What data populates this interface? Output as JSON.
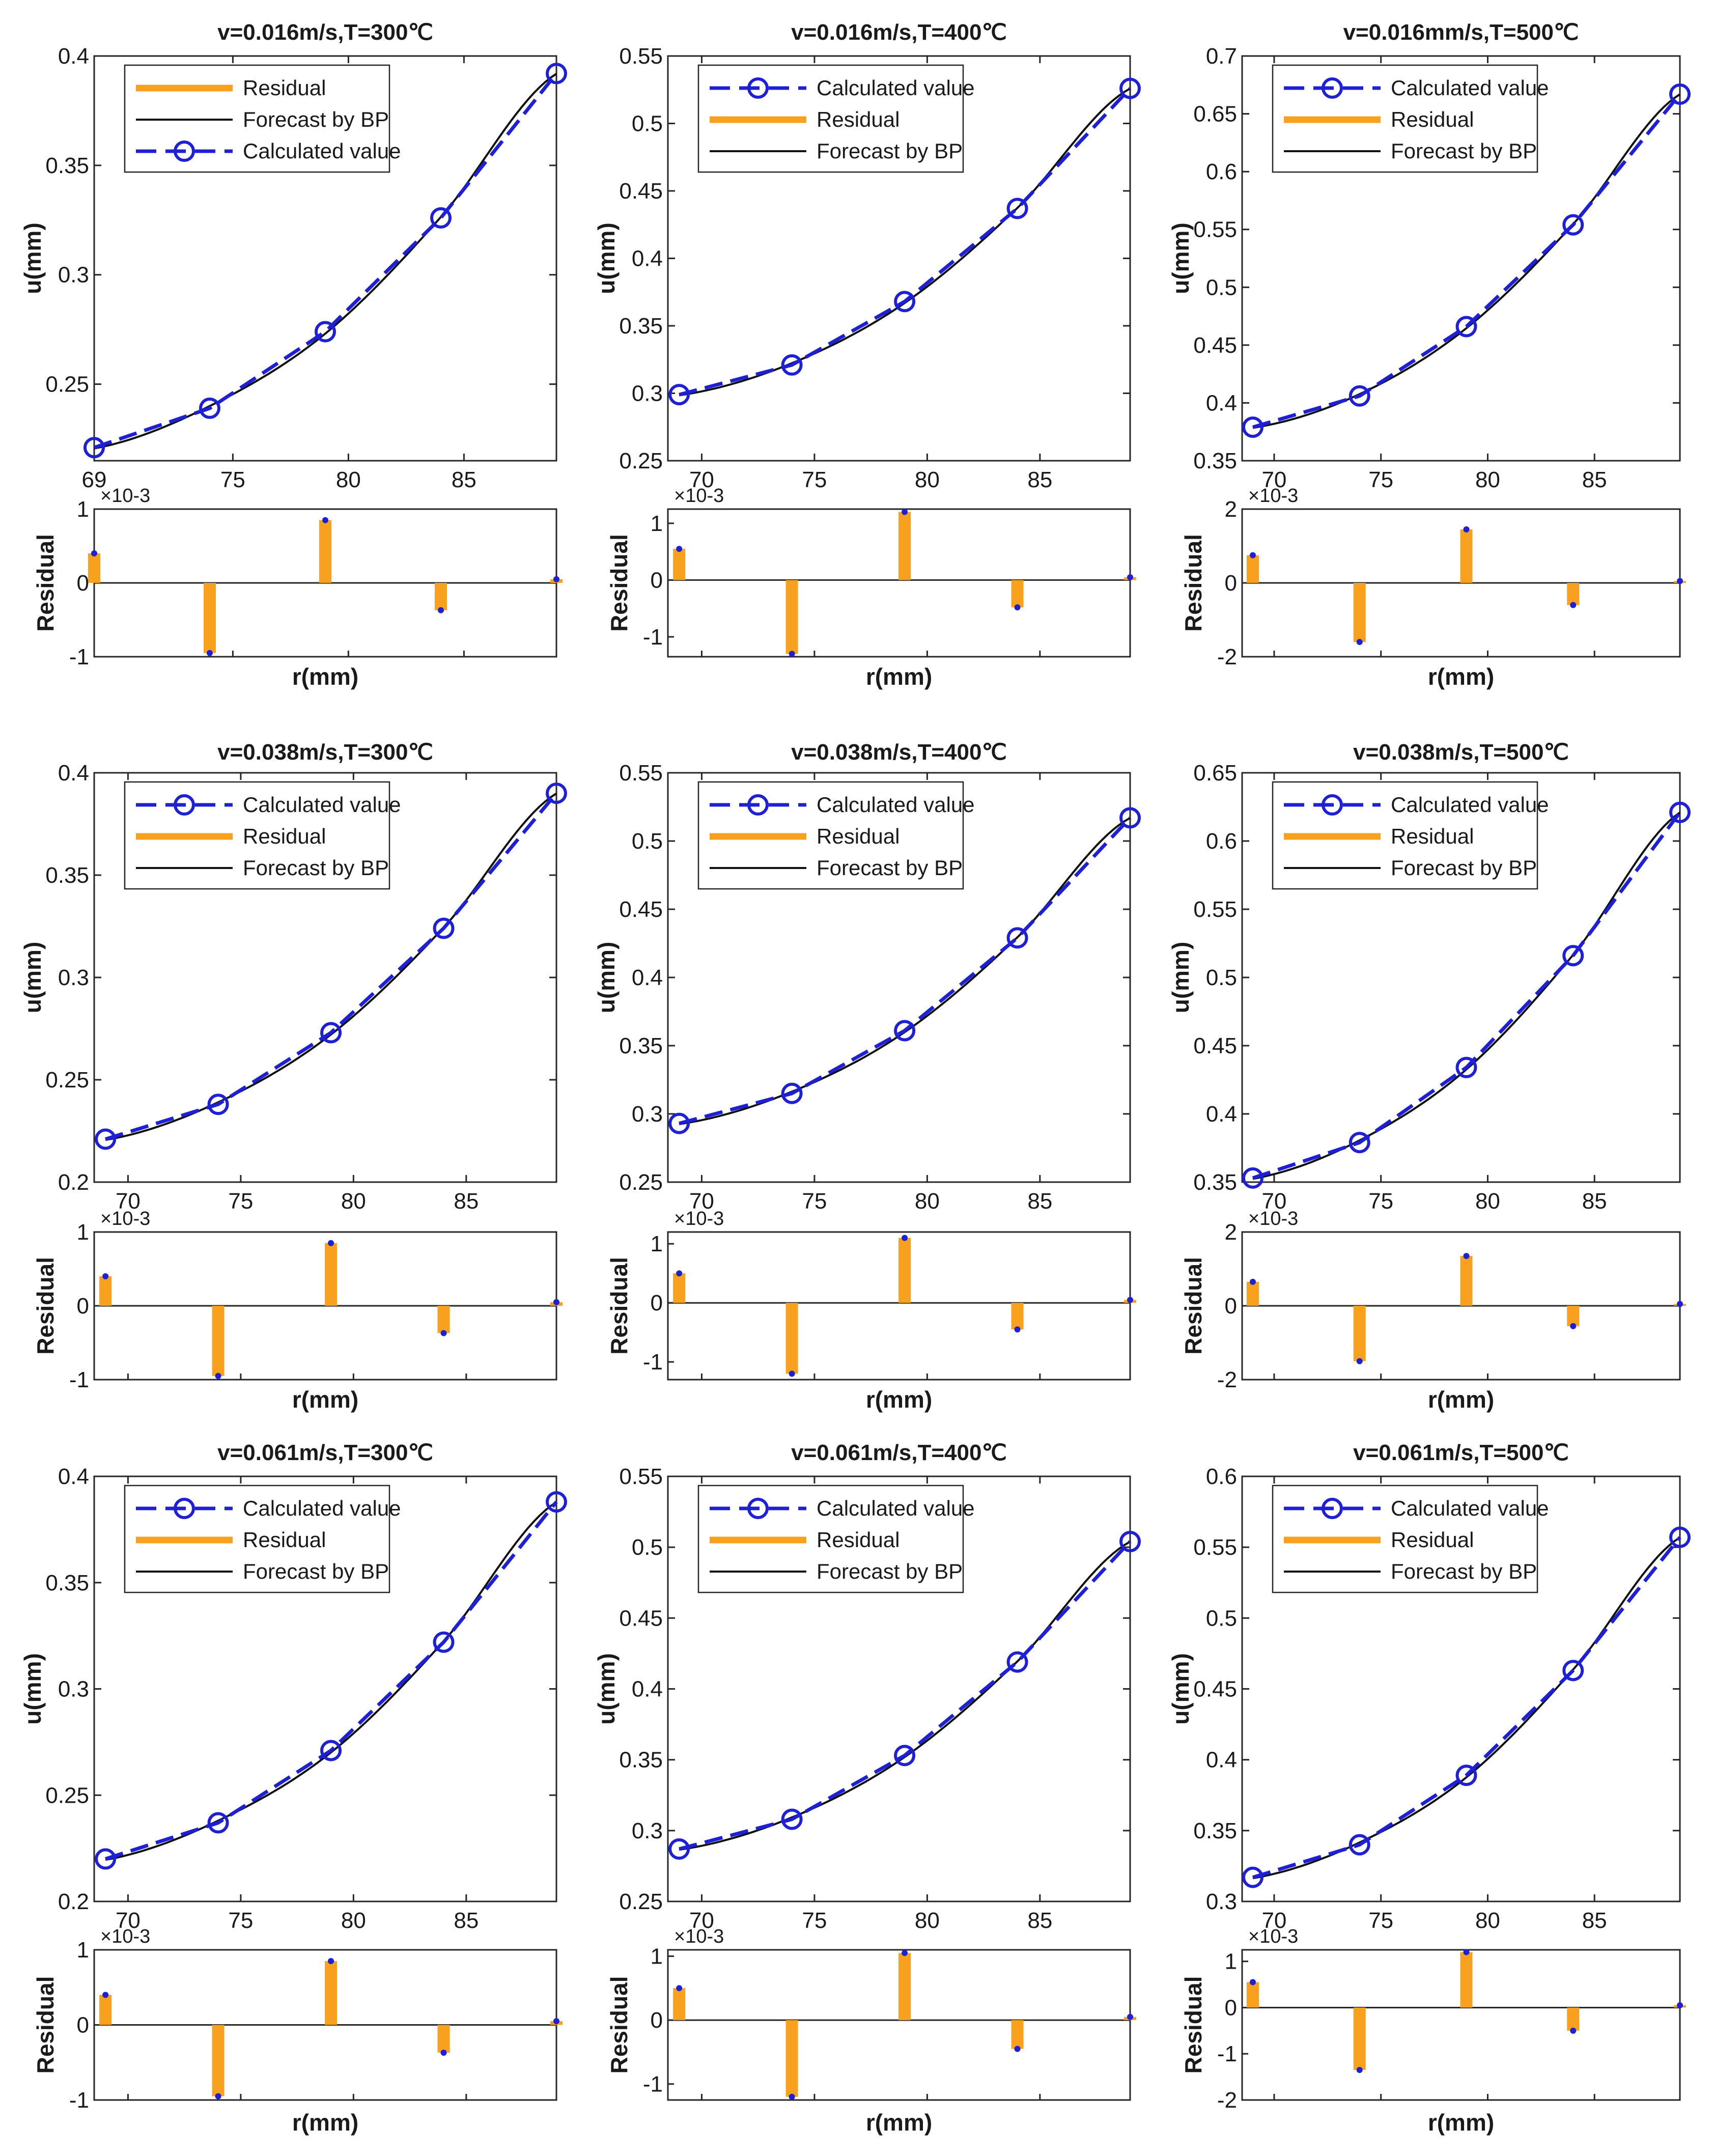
{
  "figure": {
    "series_labels": {
      "calculated": "Calculated value",
      "residual": "Residual",
      "forecast": "Forecast by BP"
    },
    "residual_ylabel": "Residual",
    "colors": {
      "calculated": "#1e20d6",
      "residual": "#f7a11e",
      "forecast": "#111111",
      "axis": "#262626"
    }
  },
  "chart_data": [
    {
      "type": "line",
      "title": "v=0.016m/s,T=300℃",
      "xlabel": "r(mm)",
      "ylabel": "u(mm)",
      "x": [
        69,
        74,
        79,
        84,
        89
      ],
      "calculated": [
        0.221,
        0.239,
        0.274,
        0.326,
        0.392
      ],
      "forecast": [
        0.2206,
        0.24,
        0.2731,
        0.3264,
        0.3919
      ],
      "ylim": [
        0.215,
        0.4
      ],
      "yticks": [
        "0.25",
        "0.3",
        "0.35",
        "0.4"
      ],
      "yticks_v": [
        0.25,
        0.3,
        0.35,
        0.4
      ],
      "xlim": [
        69,
        89
      ],
      "xticks": [
        "69",
        "75",
        "80",
        "85"
      ],
      "xticks_v": [
        69,
        75,
        80,
        85
      ],
      "legend_order": [
        "residual",
        "forecast",
        "calculated"
      ],
      "residual": {
        "values": [
          0.4,
          -0.95,
          0.85,
          -0.37,
          0.05
        ],
        "ylim": [
          -1,
          1
        ],
        "yticks": [
          "1",
          "0",
          "-1"
        ],
        "yticks_v": [
          1,
          0,
          -1
        ],
        "exponent": "×10-3"
      }
    },
    {
      "type": "line",
      "title": "v=0.016m/s,T=400℃",
      "xlabel": "r(mm)",
      "ylabel": "u(mm)",
      "x": [
        69,
        74,
        79,
        84,
        89
      ],
      "calculated": [
        0.299,
        0.321,
        0.368,
        0.437,
        0.526
      ],
      "forecast": [
        0.2985,
        0.3223,
        0.3669,
        0.4374,
        0.5259
      ],
      "ylim": [
        0.25,
        0.55
      ],
      "yticks": [
        "0.25",
        "0.3",
        "0.35",
        "0.4",
        "0.45",
        "0.5",
        "0.55"
      ],
      "yticks_v": [
        0.25,
        0.3,
        0.35,
        0.4,
        0.45,
        0.5,
        0.55
      ],
      "xlim": [
        68.5,
        89
      ],
      "xticks": [
        "70",
        "75",
        "80",
        "85"
      ],
      "xticks_v": [
        70,
        75,
        80,
        85
      ],
      "legend_order": [
        "calculated",
        "residual",
        "forecast"
      ],
      "residual": {
        "values": [
          0.55,
          -1.3,
          1.2,
          -0.48,
          0.05
        ],
        "ylim": [
          -1.35,
          1.25
        ],
        "yticks": [
          "1",
          "0",
          "-1"
        ],
        "yticks_v": [
          1,
          0,
          -1
        ],
        "exponent": "×10-3"
      }
    },
    {
      "type": "line",
      "title": "v=0.016mm/s,T=500℃",
      "xlabel": "r(mm)",
      "ylabel": "u(mm)",
      "x": [
        69,
        74,
        79,
        84,
        89
      ],
      "calculated": [
        0.379,
        0.406,
        0.466,
        0.554,
        0.667
      ],
      "forecast": [
        0.3784,
        0.4076,
        0.4646,
        0.5546,
        0.6669
      ],
      "ylim": [
        0.35,
        0.7
      ],
      "yticks": [
        "0.35",
        "0.4",
        "0.45",
        "0.5",
        "0.55",
        "0.6",
        "0.65",
        "0.7"
      ],
      "yticks_v": [
        0.35,
        0.4,
        0.45,
        0.5,
        0.55,
        0.6,
        0.65,
        0.7
      ],
      "xlim": [
        68.5,
        89
      ],
      "xticks": [
        "70",
        "75",
        "80",
        "85"
      ],
      "xticks_v": [
        70,
        75,
        80,
        85
      ],
      "legend_order": [
        "calculated",
        "residual",
        "forecast"
      ],
      "residual": {
        "values": [
          0.75,
          -1.6,
          1.45,
          -0.6,
          0.05
        ],
        "ylim": [
          -2,
          2
        ],
        "yticks": [
          "2",
          "0",
          "-2"
        ],
        "yticks_v": [
          2,
          0,
          -2
        ],
        "exponent": "×10-3"
      }
    },
    {
      "type": "line",
      "title": "v=0.038m/s,T=300℃",
      "xlabel": "r(mm)",
      "ylabel": "u(mm)",
      "x": [
        69,
        74,
        79,
        84,
        89
      ],
      "calculated": [
        0.221,
        0.238,
        0.273,
        0.324,
        0.39
      ],
      "forecast": [
        0.2206,
        0.239,
        0.2721,
        0.3244,
        0.3899
      ],
      "ylim": [
        0.2,
        0.4
      ],
      "yticks": [
        "0.2",
        "0.25",
        "0.3",
        "0.35",
        "0.4"
      ],
      "yticks_v": [
        0.2,
        0.25,
        0.3,
        0.35,
        0.4
      ],
      "xlim": [
        68.5,
        89
      ],
      "xticks": [
        "70",
        "75",
        "80",
        "85"
      ],
      "xticks_v": [
        70,
        75,
        80,
        85
      ],
      "legend_order": [
        "calculated",
        "residual",
        "forecast"
      ],
      "residual": {
        "values": [
          0.4,
          -0.95,
          0.85,
          -0.37,
          0.05
        ],
        "ylim": [
          -1,
          1
        ],
        "yticks": [
          "1",
          "0",
          "-1"
        ],
        "yticks_v": [
          1,
          0,
          -1
        ],
        "exponent": "×10-3"
      }
    },
    {
      "type": "line",
      "title": "v=0.038m/s,T=400℃",
      "xlabel": "r(mm)",
      "ylabel": "u(mm)",
      "x": [
        69,
        74,
        79,
        84,
        89
      ],
      "calculated": [
        0.293,
        0.315,
        0.361,
        0.429,
        0.517
      ],
      "forecast": [
        0.2925,
        0.3163,
        0.3599,
        0.4294,
        0.5169
      ],
      "ylim": [
        0.25,
        0.55
      ],
      "yticks": [
        "0.25",
        "0.3",
        "0.35",
        "0.4",
        "0.45",
        "0.5",
        "0.55"
      ],
      "yticks_v": [
        0.25,
        0.3,
        0.35,
        0.4,
        0.45,
        0.5,
        0.55
      ],
      "xlim": [
        68.5,
        89
      ],
      "xticks": [
        "70",
        "75",
        "80",
        "85"
      ],
      "xticks_v": [
        70,
        75,
        80,
        85
      ],
      "legend_order": [
        "calculated",
        "residual",
        "forecast"
      ],
      "residual": {
        "values": [
          0.5,
          -1.2,
          1.1,
          -0.45,
          0.05
        ],
        "ylim": [
          -1.3,
          1.2
        ],
        "yticks": [
          "1",
          "0",
          "-1"
        ],
        "yticks_v": [
          1,
          0,
          -1
        ],
        "exponent": "×10-3"
      }
    },
    {
      "type": "line",
      "title": "v=0.038m/s,T=500℃",
      "xlabel": "r(mm)",
      "ylabel": "u(mm)",
      "x": [
        69,
        74,
        79,
        84,
        89
      ],
      "calculated": [
        0.353,
        0.379,
        0.434,
        0.516,
        0.621
      ],
      "forecast": [
        0.3524,
        0.3806,
        0.4326,
        0.5166,
        0.6209
      ],
      "ylim": [
        0.35,
        0.65
      ],
      "yticks": [
        "0.35",
        "0.4",
        "0.45",
        "0.5",
        "0.55",
        "0.6",
        "0.65"
      ],
      "yticks_v": [
        0.35,
        0.4,
        0.45,
        0.5,
        0.55,
        0.6,
        0.65
      ],
      "xlim": [
        68.5,
        89
      ],
      "xticks": [
        "70",
        "75",
        "80",
        "85"
      ],
      "xticks_v": [
        70,
        75,
        80,
        85
      ],
      "legend_order": [
        "calculated",
        "residual",
        "forecast"
      ],
      "residual": {
        "values": [
          0.65,
          -1.5,
          1.35,
          -0.55,
          0.05
        ],
        "ylim": [
          -2,
          2
        ],
        "yticks": [
          "2",
          "0",
          "-2"
        ],
        "yticks_v": [
          2,
          0,
          -2
        ],
        "exponent": "×10-3"
      }
    },
    {
      "type": "line",
      "title": "v=0.061m/s,T=300℃",
      "xlabel": "r(mm)",
      "ylabel": "u(mm)",
      "x": [
        69,
        74,
        79,
        84,
        89
      ],
      "calculated": [
        0.22,
        0.237,
        0.271,
        0.322,
        0.388
      ],
      "forecast": [
        0.2196,
        0.238,
        0.2701,
        0.3224,
        0.3879
      ],
      "ylim": [
        0.2,
        0.4
      ],
      "yticks": [
        "0.2",
        "0.25",
        "0.3",
        "0.35",
        "0.4"
      ],
      "yticks_v": [
        0.2,
        0.25,
        0.3,
        0.35,
        0.4
      ],
      "xlim": [
        68.5,
        89
      ],
      "xticks": [
        "70",
        "75",
        "80",
        "85"
      ],
      "xticks_v": [
        70,
        75,
        80,
        85
      ],
      "legend_order": [
        "calculated",
        "residual",
        "forecast"
      ],
      "residual": {
        "values": [
          0.4,
          -0.95,
          0.85,
          -0.37,
          0.05
        ],
        "ylim": [
          -1,
          1
        ],
        "yticks": [
          "1",
          "0",
          "-1"
        ],
        "yticks_v": [
          1,
          0,
          -1
        ],
        "exponent": "×10-3"
      }
    },
    {
      "type": "line",
      "title": "v=0.061m/s,T=400℃",
      "xlabel": "r(mm)",
      "ylabel": "u(mm)",
      "x": [
        69,
        74,
        79,
        84,
        89
      ],
      "calculated": [
        0.287,
        0.308,
        0.353,
        0.419,
        0.504
      ],
      "forecast": [
        0.2865,
        0.3093,
        0.3519,
        0.4194,
        0.5039
      ],
      "ylim": [
        0.25,
        0.55
      ],
      "yticks": [
        "0.25",
        "0.3",
        "0.35",
        "0.4",
        "0.45",
        "0.5",
        "0.55"
      ],
      "yticks_v": [
        0.25,
        0.3,
        0.35,
        0.4,
        0.45,
        0.5,
        0.55
      ],
      "xlim": [
        68.5,
        89
      ],
      "xticks": [
        "70",
        "75",
        "80",
        "85"
      ],
      "xticks_v": [
        70,
        75,
        80,
        85
      ],
      "legend_order": [
        "calculated",
        "residual",
        "forecast"
      ],
      "residual": {
        "values": [
          0.5,
          -1.2,
          1.05,
          -0.45,
          0.05
        ],
        "ylim": [
          -1.25,
          1.1
        ],
        "yticks": [
          "1",
          "0",
          "-1"
        ],
        "yticks_v": [
          1,
          0,
          -1
        ],
        "exponent": "×10-3"
      }
    },
    {
      "type": "line",
      "title": "v=0.061m/s,T=500℃",
      "xlabel": "r(mm)",
      "ylabel": "u(mm)",
      "x": [
        69,
        74,
        79,
        84,
        89
      ],
      "calculated": [
        0.317,
        0.34,
        0.389,
        0.463,
        0.557
      ],
      "forecast": [
        0.3164,
        0.3416,
        0.3876,
        0.4636,
        0.5569
      ],
      "ylim": [
        0.3,
        0.6
      ],
      "yticks": [
        "0.3",
        "0.35",
        "0.4",
        "0.45",
        "0.5",
        "0.55",
        "0.6"
      ],
      "yticks_v": [
        0.3,
        0.35,
        0.4,
        0.45,
        0.5,
        0.55,
        0.6
      ],
      "xlim": [
        68.5,
        89
      ],
      "xticks": [
        "70",
        "75",
        "80",
        "85"
      ],
      "xticks_v": [
        70,
        75,
        80,
        85
      ],
      "legend_order": [
        "calculated",
        "residual",
        "forecast"
      ],
      "residual": {
        "values": [
          0.55,
          -1.35,
          1.2,
          -0.5,
          0.05
        ],
        "ylim": [
          -2,
          1.25
        ],
        "yticks": [
          "1",
          "0",
          "-1",
          "-2"
        ],
        "yticks_v": [
          1,
          0,
          -1,
          -2
        ],
        "exponent": "×10-3"
      }
    }
  ]
}
